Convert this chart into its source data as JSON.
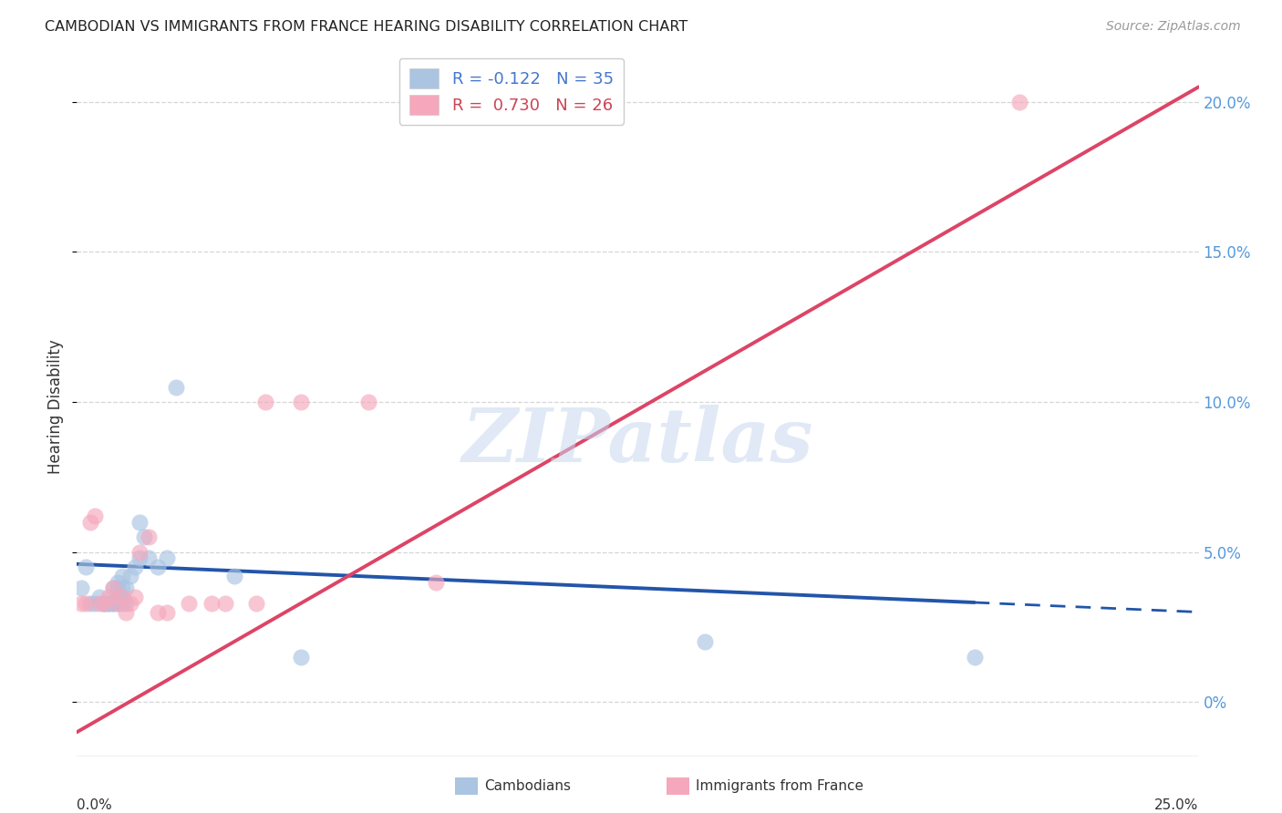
{
  "title": "CAMBODIAN VS IMMIGRANTS FROM FRANCE HEARING DISABILITY CORRELATION CHART",
  "source": "Source: ZipAtlas.com",
  "ylabel": "Hearing Disability",
  "right_yticks": [
    "0%",
    "5.0%",
    "10.0%",
    "15.0%",
    "20.0%"
  ],
  "right_ytick_vals": [
    0.0,
    0.05,
    0.1,
    0.15,
    0.2
  ],
  "xlim": [
    0.0,
    0.25
  ],
  "ylim": [
    -0.018,
    0.215
  ],
  "watermark": "ZIPatlas",
  "legend_cambodian": "R = -0.122   N = 35",
  "legend_france": "R =  0.730   N = 26",
  "cambodian_color": "#aac4e2",
  "france_color": "#f5a8bc",
  "cambodian_line_color": "#2255aa",
  "france_line_color": "#dd4466",
  "cambodian_scatter": [
    [
      0.001,
      0.038
    ],
    [
      0.002,
      0.045
    ],
    [
      0.003,
      0.033
    ],
    [
      0.004,
      0.033
    ],
    [
      0.005,
      0.035
    ],
    [
      0.006,
      0.033
    ],
    [
      0.006,
      0.033
    ],
    [
      0.007,
      0.033
    ],
    [
      0.007,
      0.033
    ],
    [
      0.008,
      0.033
    ],
    [
      0.008,
      0.033
    ],
    [
      0.008,
      0.038
    ],
    [
      0.009,
      0.033
    ],
    [
      0.009,
      0.035
    ],
    [
      0.009,
      0.038
    ],
    [
      0.009,
      0.04
    ],
    [
      0.01,
      0.033
    ],
    [
      0.01,
      0.035
    ],
    [
      0.01,
      0.038
    ],
    [
      0.01,
      0.042
    ],
    [
      0.011,
      0.033
    ],
    [
      0.011,
      0.038
    ],
    [
      0.012,
      0.042
    ],
    [
      0.013,
      0.045
    ],
    [
      0.014,
      0.048
    ],
    [
      0.014,
      0.06
    ],
    [
      0.015,
      0.055
    ],
    [
      0.016,
      0.048
    ],
    [
      0.018,
      0.045
    ],
    [
      0.02,
      0.048
    ],
    [
      0.022,
      0.105
    ],
    [
      0.035,
      0.042
    ],
    [
      0.05,
      0.015
    ],
    [
      0.14,
      0.02
    ],
    [
      0.2,
      0.015
    ]
  ],
  "france_scatter": [
    [
      0.001,
      0.033
    ],
    [
      0.002,
      0.033
    ],
    [
      0.003,
      0.06
    ],
    [
      0.004,
      0.062
    ],
    [
      0.005,
      0.033
    ],
    [
      0.006,
      0.033
    ],
    [
      0.007,
      0.035
    ],
    [
      0.008,
      0.038
    ],
    [
      0.009,
      0.033
    ],
    [
      0.01,
      0.035
    ],
    [
      0.011,
      0.03
    ],
    [
      0.012,
      0.033
    ],
    [
      0.013,
      0.035
    ],
    [
      0.014,
      0.05
    ],
    [
      0.016,
      0.055
    ],
    [
      0.018,
      0.03
    ],
    [
      0.02,
      0.03
    ],
    [
      0.025,
      0.033
    ],
    [
      0.03,
      0.033
    ],
    [
      0.033,
      0.033
    ],
    [
      0.04,
      0.033
    ],
    [
      0.042,
      0.1
    ],
    [
      0.05,
      0.1
    ],
    [
      0.065,
      0.1
    ],
    [
      0.08,
      0.04
    ],
    [
      0.21,
      0.2
    ]
  ],
  "cam_line_x": [
    0.0,
    0.25
  ],
  "cam_line_y": [
    0.046,
    0.03
  ],
  "cam_line_solid_end": 0.2,
  "fra_line_x": [
    0.0,
    0.25
  ],
  "fra_line_y": [
    -0.01,
    0.205
  ],
  "grid_yticks": [
    0.0,
    0.05,
    0.1,
    0.15,
    0.2
  ],
  "xtick_vals": [
    0.0,
    0.05,
    0.1,
    0.15,
    0.2,
    0.25
  ]
}
